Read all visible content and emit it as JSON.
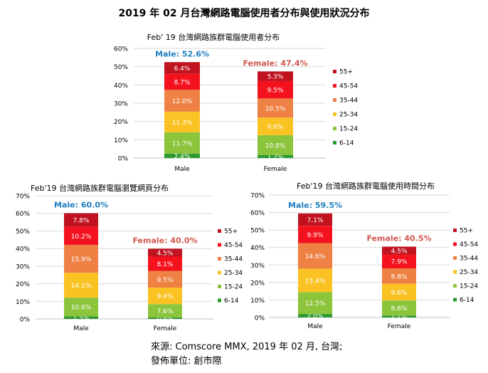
{
  "page": {
    "title": "2019 年 02 月台灣網路電腦使用者分布與使用狀況分布"
  },
  "footer": {
    "source": "來源: Comscore MMX, 2019 年 02 月, 台灣;",
    "publisher": "發佈單位:  創市際"
  },
  "legend_colors": {
    "55+": "#c0131f",
    "45-54": "#f5121f",
    "35-44": "#ee8143",
    "25-34": "#fac323",
    "15-24": "#8cc43c",
    "6-14": "#2d9a2d"
  },
  "chart_data": [
    {
      "type": "bar",
      "stacked": true,
      "title": "Feb' 19 台灣網路族群電腦使用者分布",
      "categories": [
        "Male",
        "Female"
      ],
      "totals": [
        "Male:  52.6%",
        "Female:  47.4%"
      ],
      "total_colors": [
        "#1f7ec0",
        "#d0564e"
      ],
      "ylim": [
        0,
        60
      ],
      "yticks": [
        "0%",
        "10%",
        "20%",
        "30%",
        "40%",
        "50%",
        "60%"
      ],
      "legend_position": "right",
      "series": [
        {
          "name": "6-14",
          "values": [
            2.4,
            1.7
          ],
          "labels": [
            "2.4%",
            "1.7%"
          ]
        },
        {
          "name": "15-24",
          "values": [
            11.7,
            10.8
          ],
          "labels": [
            "11.7%",
            "10.8%"
          ]
        },
        {
          "name": "25-34",
          "values": [
            11.3,
            9.6
          ],
          "labels": [
            "11.3%",
            "9.6%"
          ]
        },
        {
          "name": "35-44",
          "values": [
            12.0,
            10.5
          ],
          "labels": [
            "12.0%",
            "10.5%"
          ]
        },
        {
          "name": "45-54",
          "values": [
            8.7,
            9.5
          ],
          "labels": [
            "8.7%",
            "9.5%"
          ]
        },
        {
          "name": "55+",
          "values": [
            6.4,
            5.3
          ],
          "labels": [
            "6.4%",
            "5.3%"
          ]
        }
      ]
    },
    {
      "type": "bar",
      "stacked": true,
      "title": "Feb'19 台灣網路族群電腦瀏覽網頁分布",
      "categories": [
        "Male",
        "Female"
      ],
      "totals": [
        "Male:  60.0%",
        "Female:  40.0%"
      ],
      "total_colors": [
        "#1f7ec0",
        "#d0564e"
      ],
      "ylim": [
        0,
        70
      ],
      "yticks": [
        "0%",
        "10%",
        "20%",
        "30%",
        "40%",
        "50%",
        "60%",
        "70%"
      ],
      "legend_position": "right",
      "series": [
        {
          "name": "6-14",
          "values": [
            1.5,
            0.8
          ],
          "labels": [
            "1.5%",
            "0.8%"
          ]
        },
        {
          "name": "15-24",
          "values": [
            10.6,
            7.6
          ],
          "labels": [
            "10.6%",
            "7.6%"
          ]
        },
        {
          "name": "25-34",
          "values": [
            14.1,
            9.4
          ],
          "labels": [
            "14.1%",
            "9.4%"
          ]
        },
        {
          "name": "35-44",
          "values": [
            15.9,
            9.5
          ],
          "labels": [
            "15.9%",
            "9.5%"
          ]
        },
        {
          "name": "45-54",
          "values": [
            10.2,
            8.1
          ],
          "labels": [
            "10.2%",
            "8.1%"
          ]
        },
        {
          "name": "55+",
          "values": [
            7.8,
            4.5
          ],
          "labels": [
            "7.8%",
            "4.5%"
          ]
        }
      ]
    },
    {
      "type": "bar",
      "stacked": true,
      "title": "Feb'19 台灣網路族群電腦使用時間分布",
      "categories": [
        "Male",
        "Female"
      ],
      "totals": [
        "Male:  59.5%",
        "Female:  40.5%"
      ],
      "total_colors": [
        "#1f7ec0",
        "#d0564e"
      ],
      "ylim": [
        0,
        70
      ],
      "yticks": [
        "0%",
        "10%",
        "20%",
        "30%",
        "40%",
        "50%",
        "60%",
        "70%"
      ],
      "legend_position": "right",
      "series": [
        {
          "name": "6-14",
          "values": [
            2.0,
            1.1
          ],
          "labels": [
            "2.0%",
            "1.1%"
          ]
        },
        {
          "name": "15-24",
          "values": [
            12.5,
            8.6
          ],
          "labels": [
            "12.5%",
            "8.6%"
          ]
        },
        {
          "name": "25-34",
          "values": [
            13.4,
            9.6
          ],
          "labels": [
            "13.4%",
            "9.6%"
          ]
        },
        {
          "name": "35-44",
          "values": [
            14.6,
            8.8
          ],
          "labels": [
            "14.6%",
            "8.8%"
          ]
        },
        {
          "name": "45-54",
          "values": [
            9.9,
            7.9
          ],
          "labels": [
            "9.9%",
            "7.9%"
          ]
        },
        {
          "name": "55+",
          "values": [
            7.1,
            4.5
          ],
          "labels": [
            "7.1%",
            "4.5%"
          ]
        }
      ]
    }
  ]
}
